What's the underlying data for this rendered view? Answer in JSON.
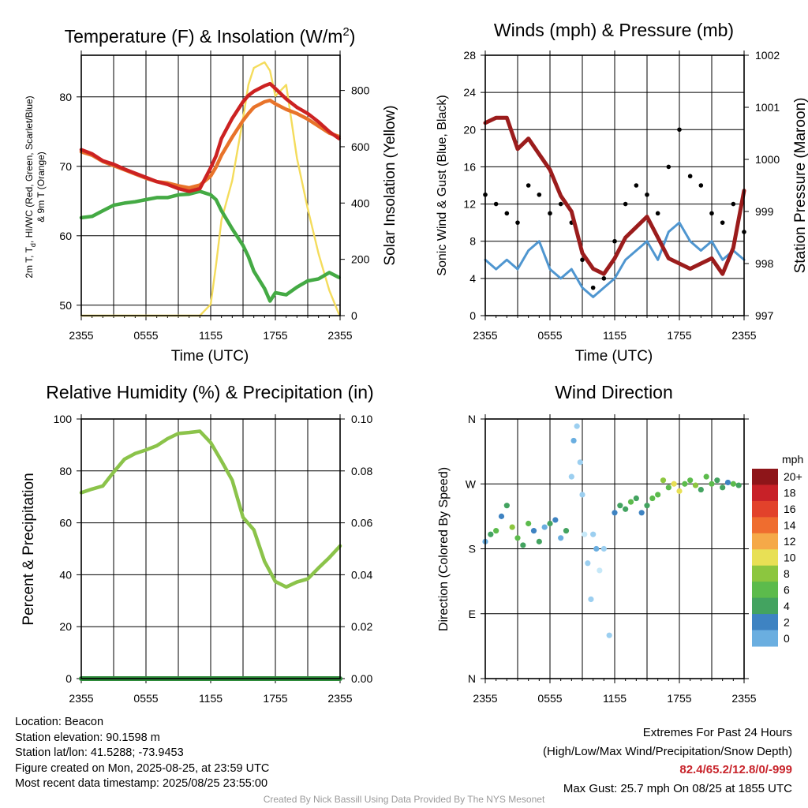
{
  "colors": {
    "temperature": "#cc2222",
    "heat_index": "#e8732a",
    "dewpoint": "#44aa44",
    "insolation": "#f4dc5c",
    "sonic_wind": "#4f96d0",
    "gust": "#000000",
    "pressure": "#9b1c1c",
    "humidity": "#8bc34a",
    "precipitation": "#2e8b3a",
    "speed_scale": [
      "#c6e8f8",
      "#9ccff0",
      "#6aaee0",
      "#3e83c2",
      "#43a360",
      "#5cbb4c",
      "#8cc63f",
      "#e8e055",
      "#f5a948",
      "#ef6d2f",
      "#e2422b",
      "#c82128",
      "#8e1519"
    ]
  },
  "chart_data": [
    {
      "type": "line",
      "title": "Temperature (F) & Insolation (W/m",
      "title_superscript": "2",
      "title_end": ")",
      "xlabel": "Time (UTC)",
      "ylabel_left": "2m T, T",
      "ylabel_left_sub": "d",
      "ylabel_left_rest": ", HI/WC (Red, Green, Scarlet/Blue)",
      "ylabel_left_line2": "& 9m T (Orange)",
      "ylabel_right": "Solar Insolation (Yellow)",
      "x_ticks": [
        "2355",
        "0555",
        "1155",
        "1755",
        "2355"
      ],
      "xlim_hours": [
        0,
        24
      ],
      "ylim_left": [
        48.5,
        86
      ],
      "y_ticks_left": [
        "50",
        "60",
        "70",
        "80"
      ],
      "ylim_right": [
        0,
        925
      ],
      "y_ticks_right": [
        "0",
        "200",
        "400",
        "600",
        "800"
      ],
      "x_hours": [
        0,
        1,
        2,
        3,
        4,
        5,
        6,
        7,
        8,
        9,
        10,
        11,
        12,
        12.5,
        13,
        14,
        15,
        15.5,
        16,
        17,
        17.5,
        18,
        19,
        20,
        21,
        22,
        23,
        23.9
      ],
      "series": [
        {
          "name": "2m T",
          "axis": "left",
          "values": [
            72.4,
            71.8,
            70.8,
            70.3,
            69.6,
            69.0,
            68.4,
            67.8,
            67.4,
            66.8,
            66.4,
            66.8,
            69.8,
            71.5,
            74.0,
            76.9,
            79.3,
            80.2,
            80.8,
            81.6,
            81.9,
            81.2,
            79.7,
            78.5,
            77.6,
            76.4,
            75.0,
            74.0
          ]
        },
        {
          "name": "9m T",
          "axis": "left",
          "values": [
            72.1,
            71.6,
            70.7,
            70.1,
            69.5,
            68.9,
            68.3,
            67.8,
            67.6,
            67.2,
            66.9,
            67.3,
            68.6,
            69.9,
            71.6,
            74.2,
            76.6,
            77.6,
            78.5,
            79.3,
            79.5,
            79.0,
            78.2,
            77.6,
            76.8,
            75.8,
            74.8,
            74.3
          ]
        },
        {
          "name": "Td",
          "axis": "left",
          "values": [
            62.6,
            62.8,
            63.6,
            64.4,
            64.7,
            64.9,
            65.2,
            65.5,
            65.5,
            65.9,
            66.0,
            66.4,
            65.9,
            65.2,
            63.6,
            61.0,
            58.6,
            57.0,
            54.9,
            52.4,
            50.6,
            51.8,
            51.5,
            52.6,
            53.5,
            53.8,
            54.7,
            54.0
          ]
        },
        {
          "name": "Insolation",
          "axis": "right",
          "values": [
            0,
            0,
            0,
            0,
            0,
            0,
            0,
            0,
            0,
            0,
            0,
            0,
            40,
            180,
            340,
            480,
            700,
            820,
            880,
            900,
            870,
            780,
            820,
            560,
            380,
            220,
            90,
            5
          ]
        }
      ]
    },
    {
      "type": "line",
      "title": "Winds (mph) & Pressure (mb)",
      "xlabel": "Time (UTC)",
      "ylabel_left": "Sonic Wind & Gust (Blue, Black)",
      "ylabel_right": "Station Pressure (Maroon)",
      "x_ticks": [
        "2355",
        "0555",
        "1155",
        "1755",
        "2355"
      ],
      "xlim_hours": [
        0,
        24
      ],
      "ylim_left": [
        0,
        28
      ],
      "y_ticks_left": [
        "0",
        "4",
        "8",
        "12",
        "16",
        "20",
        "24",
        "28"
      ],
      "ylim_right": [
        997,
        1002
      ],
      "y_ticks_right": [
        "997",
        "998",
        "999",
        "1000",
        "1001",
        "1002"
      ],
      "x_hours": [
        0,
        1,
        2,
        3,
        4,
        5,
        6,
        7,
        8,
        9,
        10,
        11,
        12,
        13,
        14,
        15,
        16,
        17,
        18,
        19,
        20,
        21,
        22,
        23,
        24
      ],
      "series": [
        {
          "name": "Sonic Wind",
          "axis": "left",
          "values": [
            6,
            5,
            6,
            5,
            7,
            8,
            5,
            4,
            5,
            3,
            2,
            3,
            4,
            6,
            7,
            8,
            6,
            9,
            10,
            8,
            7,
            8,
            6,
            7,
            6
          ]
        },
        {
          "name": "Gust",
          "axis": "left",
          "values": [
            13,
            12,
            11,
            10,
            14,
            13,
            11,
            12,
            10,
            6,
            3,
            4,
            8,
            12,
            14,
            13,
            11,
            16,
            20,
            15,
            14,
            11,
            10,
            12,
            9
          ]
        },
        {
          "name": "Station Pressure",
          "axis": "right",
          "values": [
            1000.7,
            1000.8,
            1000.8,
            1000.2,
            1000.4,
            1000.1,
            999.8,
            999.3,
            999.0,
            998.2,
            997.9,
            997.8,
            998.1,
            998.5,
            998.7,
            998.9,
            998.5,
            998.1,
            998.0,
            997.9,
            998.0,
            998.1,
            997.8,
            998.3,
            999.4
          ]
        }
      ]
    },
    {
      "type": "line",
      "title": "Relative Humidity (%) & Precipitation (in)",
      "ylabel_left": "Percent & Precipitation",
      "x_ticks": [
        "2355",
        "0555",
        "1155",
        "1755",
        "2355"
      ],
      "xlim_hours": [
        0,
        24
      ],
      "ylim_left": [
        0,
        100
      ],
      "y_ticks_left": [
        "0",
        "20",
        "40",
        "60",
        "80",
        "100"
      ],
      "ylim_right": [
        0,
        0.1
      ],
      "y_ticks_right": [
        "0.00",
        "0.02",
        "0.04",
        "0.06",
        "0.08",
        "0.10"
      ],
      "x_hours": [
        0,
        1,
        2,
        3,
        4,
        5,
        6,
        7,
        8,
        9,
        10,
        11,
        12,
        13,
        14,
        15,
        16,
        17,
        18,
        19,
        20,
        21,
        22,
        23,
        24
      ],
      "series": [
        {
          "name": "Relative Humidity",
          "axis": "left",
          "values": [
            71.6,
            73.0,
            74.2,
            79.5,
            84.5,
            86.7,
            88.1,
            89.7,
            92.4,
            94.4,
            94.8,
            95.3,
            90.9,
            83.8,
            76.4,
            62.1,
            57.3,
            45.1,
            37.4,
            35.3,
            37.2,
            38.4,
            42.6,
            46.6,
            51.1
          ]
        },
        {
          "name": "Precipitation",
          "axis": "right",
          "values": [
            0,
            0,
            0,
            0,
            0,
            0,
            0,
            0,
            0,
            0,
            0,
            0,
            0,
            0,
            0,
            0,
            0,
            0,
            0,
            0,
            0,
            0,
            0,
            0,
            0
          ]
        }
      ]
    },
    {
      "type": "scatter",
      "title": "Wind Direction",
      "ylabel_left": "Direction (Colored By Speed)",
      "x_ticks": [
        "2355",
        "0555",
        "1155",
        "1755",
        "2355"
      ],
      "xlim_hours": [
        0,
        24
      ],
      "y_ticks_left": [
        "N",
        "E",
        "S",
        "W",
        "N"
      ],
      "ylim_degrees": [
        0,
        360
      ],
      "y_tick_degrees": [
        0,
        90,
        180,
        270,
        360
      ],
      "colorbar_title": "mph",
      "colorbar_labels": [
        "20+",
        "18",
        "16",
        "14",
        "12",
        "10",
        "8",
        "6",
        "4",
        "2",
        "0"
      ],
      "x_hours": [
        0,
        0.5,
        1,
        1.5,
        2,
        2.5,
        3,
        3.5,
        4,
        4.5,
        5,
        5.5,
        6,
        6.5,
        7,
        7.5,
        8,
        8.2,
        8.5,
        8.8,
        9,
        9.2,
        9.5,
        9.8,
        10,
        10.3,
        10.6,
        11,
        11.5,
        12,
        12.5,
        13,
        13.5,
        14,
        14.5,
        15,
        15.5,
        16,
        16.5,
        17,
        17.5,
        18,
        18.5,
        19,
        19.5,
        20,
        20.5,
        21,
        21.5,
        22,
        22.5,
        23,
        23.5
      ],
      "directions": [
        190,
        200,
        205,
        225,
        240,
        210,
        195,
        185,
        215,
        205,
        190,
        210,
        215,
        220,
        195,
        205,
        280,
        330,
        350,
        300,
        255,
        200,
        160,
        110,
        200,
        180,
        150,
        180,
        60,
        230,
        240,
        235,
        245,
        250,
        230,
        240,
        250,
        255,
        275,
        265,
        270,
        260,
        270,
        275,
        268,
        262,
        280,
        270,
        275,
        265,
        272,
        270,
        268
      ],
      "speeds": [
        4,
        6,
        8,
        5,
        7,
        10,
        8,
        6,
        9,
        5,
        7,
        4,
        6,
        5,
        4,
        6,
        2,
        3,
        1,
        2,
        1,
        0,
        1,
        2,
        1,
        3,
        0,
        2,
        1,
        5,
        7,
        6,
        8,
        6,
        5,
        7,
        8,
        9,
        10,
        8,
        12,
        11,
        9,
        8,
        10,
        7,
        9,
        8,
        6,
        7,
        5,
        8,
        6
      ]
    }
  ],
  "footer": {
    "location": "Location: Beacon",
    "elevation": "Station elevation: 90.1598 m",
    "latlon": "Station lat/lon: 41.5288; -73.9453",
    "created": "Figure created on Mon, 2025-08-25, at 23:59 UTC",
    "recent": "Most recent data timestamp: 2025/08/25 23:55:00",
    "extremes_title": "Extremes For Past 24 Hours",
    "extremes_subtitle": "(High/Low/Max Wind/Precipitation/Snow Depth)",
    "extremes_values": "82.4/65.2/12.8/0/-999",
    "max_gust": "Max Gust: 25.7 mph On 08/25 at 1855 UTC",
    "credit": "Created By Nick Bassill Using Data Provided By The NYS Mesonet"
  }
}
